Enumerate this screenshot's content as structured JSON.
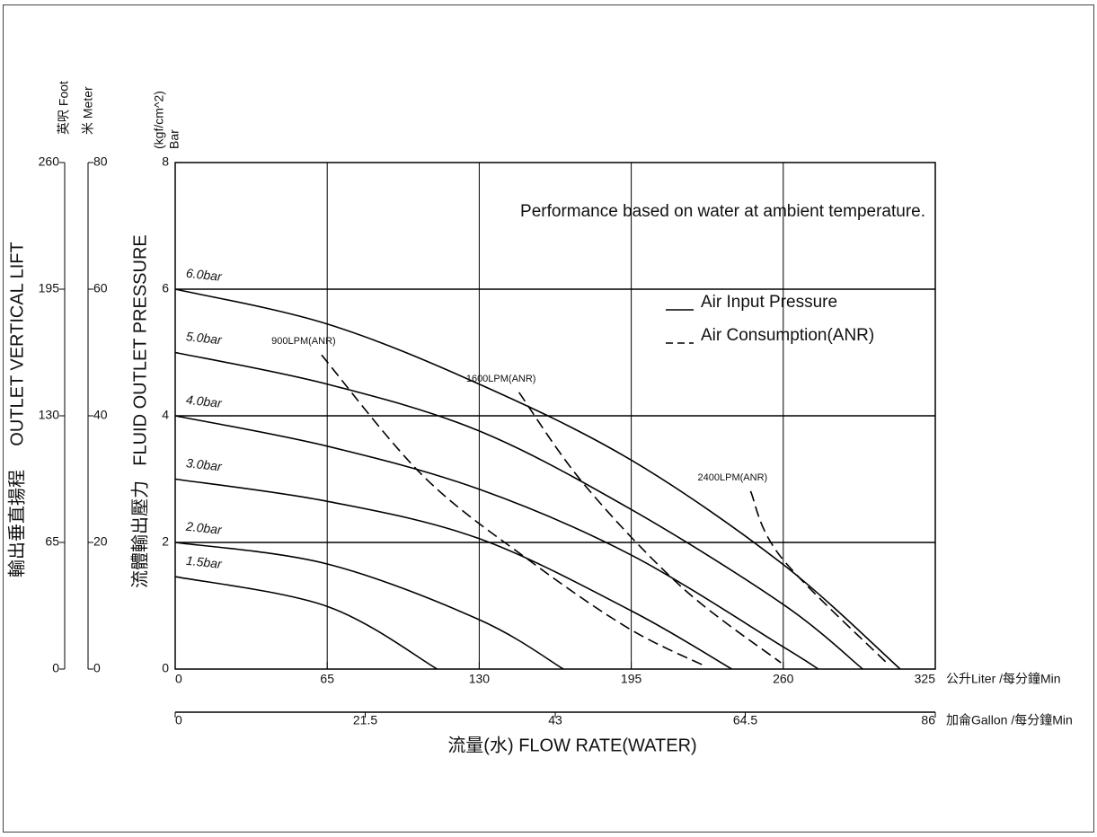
{
  "chart_data": {
    "type": "line",
    "annotation": "Performance based on water at ambient temperature.",
    "ylabel": "FLUID OUTLET PRESSURE",
    "ylabel_cn": "流體輸出壓力",
    "yunit_top": "(kgf/cm^2)",
    "yunit_bottom": "Bar",
    "xlabel": "流量(水) FLOW RATE(WATER)",
    "xunit": "公升Liter /每分鐘Min",
    "x2unit": "加侖Gallon /每分鐘Min",
    "xlim": [
      0,
      325
    ],
    "xticks": [
      0,
      65,
      130,
      195,
      260,
      325
    ],
    "x2lim": [
      0,
      86
    ],
    "x2ticks": [
      0,
      21.5,
      43,
      64.5,
      86
    ],
    "ylim": [
      0,
      8
    ],
    "yticks": [
      0,
      2,
      4,
      6,
      8
    ],
    "lift_label": "OUTLET VERTICAL LIFT",
    "lift_label_cn": "輸出垂直揚程",
    "foot_unit": "英呎 Foot",
    "foot_lim": [
      0,
      260
    ],
    "foot_ticks": [
      0,
      65,
      130,
      195,
      260
    ],
    "meter_unit": "米 Meter",
    "meter_lim": [
      0,
      80
    ],
    "meter_ticks": [
      0,
      20,
      40,
      60,
      80
    ],
    "grid": true,
    "legend": [
      {
        "name": "Air Input Pressure",
        "style": "solid"
      },
      {
        "name": "Air Consumption(ANR)",
        "style": "dashed"
      }
    ],
    "series": [
      {
        "name": "6.0bar",
        "style": "solid",
        "color": "#000000",
        "x": [
          0,
          65,
          130,
          195,
          260,
          310
        ],
        "values": [
          6,
          5.45,
          4.5,
          3.3,
          1.65,
          0
        ]
      },
      {
        "name": "5.0bar",
        "style": "solid",
        "color": "#000000",
        "x": [
          0,
          65,
          130,
          195,
          260,
          294
        ],
        "values": [
          5,
          4.5,
          3.76,
          2.52,
          1.02,
          0
        ]
      },
      {
        "name": "4.0bar",
        "style": "solid",
        "color": "#000000",
        "x": [
          0,
          65,
          130,
          195,
          260,
          275
        ],
        "values": [
          4,
          3.52,
          2.84,
          1.8,
          0.35,
          0
        ]
      },
      {
        "name": "3.0bar",
        "style": "solid",
        "color": "#000000",
        "x": [
          0,
          65,
          130,
          195,
          238
        ],
        "values": [
          3,
          2.65,
          2.06,
          0.92,
          0
        ]
      },
      {
        "name": "2.0bar",
        "style": "solid",
        "color": "#000000",
        "x": [
          0,
          65,
          130,
          166
        ],
        "values": [
          2,
          1.66,
          0.78,
          0
        ]
      },
      {
        "name": "1.5bar",
        "style": "solid",
        "color": "#000000",
        "x": [
          0,
          65,
          112
        ],
        "values": [
          1.46,
          0.99,
          0
        ]
      },
      {
        "name": "900LPM(ANR)",
        "style": "dashed",
        "color": "#000000",
        "x": [
          62.6,
          106,
          152,
          194,
          227
        ],
        "values": [
          4.96,
          3.05,
          1.7,
          0.64,
          0.04
        ]
      },
      {
        "name": "1600LPM(ANR)",
        "style": "dashed",
        "color": "#000000",
        "x": [
          147,
          175,
          217,
          259
        ],
        "values": [
          4.37,
          2.91,
          1.28,
          0.1
        ]
      },
      {
        "name": "2400LPM(ANR)",
        "style": "dashed",
        "color": "#000000",
        "x": [
          246,
          259,
          305
        ],
        "values": [
          2.81,
          1.77,
          0.07
        ]
      }
    ]
  }
}
